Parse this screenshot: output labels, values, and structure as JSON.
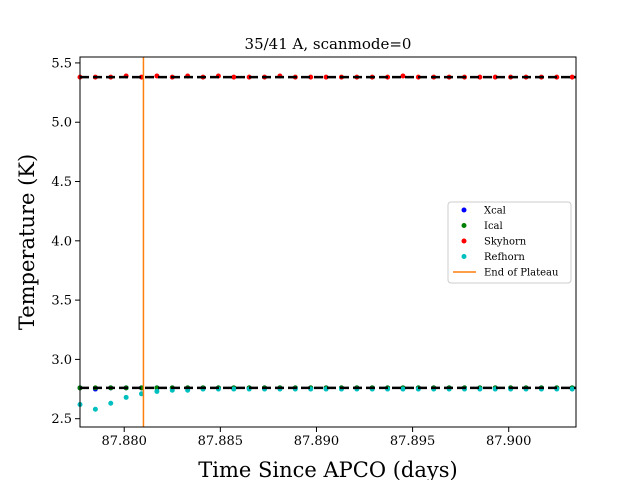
{
  "chart_data": {
    "type": "scatter",
    "title": "35/41 A, scanmode=0",
    "xlabel": "Time Since APCO (days)",
    "ylabel": "Temperature (K)",
    "xlim": [
      87.8777,
      87.9035
    ],
    "ylim": [
      2.43,
      5.55
    ],
    "xticks": [
      87.88,
      87.885,
      87.89,
      87.895,
      87.9
    ],
    "xtick_labels": [
      "87.880",
      "87.885",
      "87.890",
      "87.895",
      "87.900"
    ],
    "yticks": [
      2.5,
      3.0,
      3.5,
      4.0,
      4.5,
      5.0,
      5.5
    ],
    "ytick_labels": [
      "2.5",
      "3.0",
      "3.5",
      "4.0",
      "4.5",
      "5.0",
      "5.5"
    ],
    "grid": false,
    "legend_position": "center-right",
    "x": [
      87.8777,
      87.8785,
      87.8793,
      87.8801,
      87.8809,
      87.8817,
      87.8825,
      87.8833,
      87.8841,
      87.8849,
      87.8857,
      87.8865,
      87.8873,
      87.8881,
      87.8889,
      87.8897,
      87.8905,
      87.8913,
      87.8921,
      87.8929,
      87.8937,
      87.8945,
      87.8953,
      87.8961,
      87.8969,
      87.8977,
      87.8985,
      87.8993,
      87.9001,
      87.9009,
      87.9017,
      87.9025,
      87.9033
    ],
    "series": [
      {
        "name": "Xcal",
        "color": "#0000ff",
        "values": [
          2.76,
          2.75,
          2.76,
          2.76,
          2.76,
          2.76,
          2.76,
          2.76,
          2.76,
          2.76,
          2.76,
          2.76,
          2.76,
          2.76,
          2.76,
          2.76,
          2.76,
          2.76,
          2.76,
          2.76,
          2.76,
          2.76,
          2.76,
          2.76,
          2.76,
          2.76,
          2.76,
          2.76,
          2.76,
          2.76,
          2.76,
          2.76,
          2.76
        ]
      },
      {
        "name": "Ical",
        "color": "#008000",
        "values": [
          2.76,
          2.76,
          2.76,
          2.76,
          2.76,
          2.76,
          2.76,
          2.76,
          2.76,
          2.76,
          2.76,
          2.76,
          2.76,
          2.76,
          2.76,
          2.76,
          2.76,
          2.76,
          2.76,
          2.76,
          2.76,
          2.76,
          2.76,
          2.76,
          2.76,
          2.76,
          2.76,
          2.76,
          2.76,
          2.76,
          2.76,
          2.76,
          2.76
        ]
      },
      {
        "name": "Skyhorn",
        "color": "#ff0000",
        "values": [
          5.38,
          5.38,
          5.38,
          5.39,
          5.38,
          5.39,
          5.38,
          5.39,
          5.38,
          5.39,
          5.38,
          5.38,
          5.38,
          5.39,
          5.38,
          5.38,
          5.38,
          5.38,
          5.38,
          5.38,
          5.38,
          5.39,
          5.38,
          5.38,
          5.38,
          5.38,
          5.38,
          5.38,
          5.38,
          5.38,
          5.38,
          5.38,
          5.38
        ]
      },
      {
        "name": "Refhorn",
        "color": "#00bfbf",
        "values": [
          2.62,
          2.58,
          2.63,
          2.68,
          2.71,
          2.73,
          2.74,
          2.74,
          2.75,
          2.75,
          2.75,
          2.75,
          2.75,
          2.75,
          2.75,
          2.75,
          2.75,
          2.75,
          2.75,
          2.75,
          2.75,
          2.75,
          2.75,
          2.75,
          2.75,
          2.75,
          2.75,
          2.75,
          2.75,
          2.75,
          2.75,
          2.75,
          2.75
        ]
      }
    ],
    "reference_lines": [
      {
        "y": 5.38,
        "color": "#000000",
        "style": "dashed"
      },
      {
        "y": 2.76,
        "color": "#000000",
        "style": "dashed"
      }
    ],
    "vertical_line": {
      "name": "End of Plateau",
      "x": 87.881,
      "color": "#ff7f0e"
    }
  }
}
